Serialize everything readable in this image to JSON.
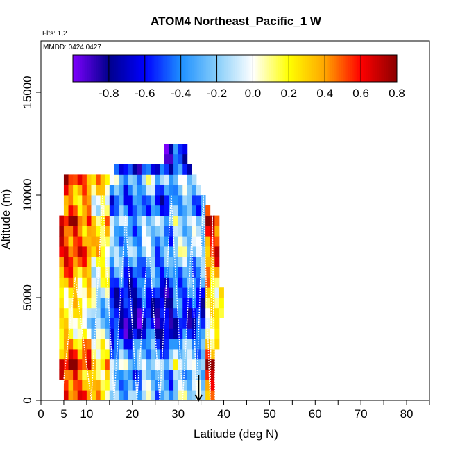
{
  "chart_data": {
    "type": "heatmap",
    "title": "ATOM4 Northeast_Pacific_1 W",
    "note_flights": "Flts: 1,2",
    "note_dates": "MMDD: 0424,0427",
    "xlabel": "Latitude (deg N)",
    "ylabel": "Altitude (m)",
    "xlim": [
      0,
      85
    ],
    "ylim": [
      0,
      17500
    ],
    "x_ticks": [
      0,
      5,
      10,
      20,
      30,
      40,
      50,
      60,
      70,
      80
    ],
    "x_minor_ticks": [
      15,
      25,
      35,
      45,
      55,
      65,
      75,
      85
    ],
    "y_ticks": [
      0,
      5000,
      10000,
      15000
    ],
    "colorbar": {
      "min": -1.0,
      "max": 0.8,
      "tick_values": [
        -0.8,
        -0.6,
        -0.4,
        -0.2,
        0.0,
        0.2,
        0.4,
        0.6,
        0.8
      ],
      "tick_labels": [
        "-0.8",
        "-0.6",
        "-0.4",
        "-0.2",
        "0.0",
        "0.2",
        "0.4",
        "0.6",
        "0.8"
      ],
      "colors": [
        "#7f00ff",
        "#00008b",
        "#0000ff",
        "#1e90ff",
        "#87cefa",
        "#ffffff",
        "#ffff00",
        "#ffa500",
        "#ff0000",
        "#8b0000"
      ]
    },
    "marker": {
      "latitude": 34.5,
      "altitude": 0,
      "symbol": "down-arrow"
    },
    "altitude_bands": [
      {
        "alt": 500,
        "lat": [
          5,
          38
        ]
      },
      {
        "alt": 1000,
        "lat": [
          5,
          38
        ]
      },
      {
        "alt": 1500,
        "lat": [
          4,
          38
        ]
      },
      {
        "alt": 2000,
        "lat": [
          4,
          38
        ]
      },
      {
        "alt": 2500,
        "lat": [
          4,
          38
        ]
      },
      {
        "alt": 3000,
        "lat": [
          4,
          39
        ]
      },
      {
        "alt": 3500,
        "lat": [
          4,
          39
        ]
      },
      {
        "alt": 4000,
        "lat": [
          4,
          39
        ]
      },
      {
        "alt": 4500,
        "lat": [
          4,
          40
        ]
      },
      {
        "alt": 5000,
        "lat": [
          4,
          40
        ]
      },
      {
        "alt": 5500,
        "lat": [
          4,
          40
        ]
      },
      {
        "alt": 6000,
        "lat": [
          4,
          39
        ]
      },
      {
        "alt": 6500,
        "lat": [
          4,
          39
        ]
      },
      {
        "alt": 7000,
        "lat": [
          4,
          39
        ]
      },
      {
        "alt": 7500,
        "lat": [
          4,
          39
        ]
      },
      {
        "alt": 8000,
        "lat": [
          4,
          39
        ]
      },
      {
        "alt": 8500,
        "lat": [
          4,
          39
        ]
      },
      {
        "alt": 9000,
        "lat": [
          4,
          39
        ]
      },
      {
        "alt": 9500,
        "lat": [
          5,
          37
        ]
      },
      {
        "alt": 10000,
        "lat": [
          5,
          36
        ]
      },
      {
        "alt": 10500,
        "lat": [
          5,
          35
        ]
      },
      {
        "alt": 11000,
        "lat": [
          5,
          34
        ]
      },
      {
        "alt": 11500,
        "lat": [
          16,
          33
        ]
      },
      {
        "alt": 12000,
        "lat": [
          27,
          32
        ]
      },
      {
        "alt": 12500,
        "lat": [
          27,
          32
        ]
      }
    ],
    "profile_segments": [
      [
        4.5,
        11,
        7.5,
        6
      ],
      [
        11,
        16,
        13.5,
        10
      ],
      [
        16,
        21,
        18.5,
        9
      ],
      [
        21,
        26,
        23.5,
        8
      ],
      [
        26,
        31,
        28.5,
        10
      ],
      [
        31,
        34,
        33,
        8
      ],
      [
        34,
        37,
        35.5,
        10
      ],
      [
        37,
        38,
        37.5,
        9
      ]
    ],
    "value_field": {
      "alt_gain": [
        0.15,
        0.1,
        0.05,
        0.25,
        0.05,
        -0.05,
        -0.25,
        -0.35,
        -0.3,
        -0.25,
        -0.2,
        -0.1,
        -0.05,
        0.05,
        0.15,
        0.1,
        0.1,
        0.2,
        -0.05,
        -0.1,
        0.05,
        0.2,
        -0.2,
        -0.4,
        -0.3
      ],
      "lat_gain": [
        0.45,
        0.35,
        0.1,
        -0.35,
        -0.45,
        -0.3,
        -0.45,
        -0.25,
        -0.3,
        0.4,
        0.55
      ]
    }
  }
}
